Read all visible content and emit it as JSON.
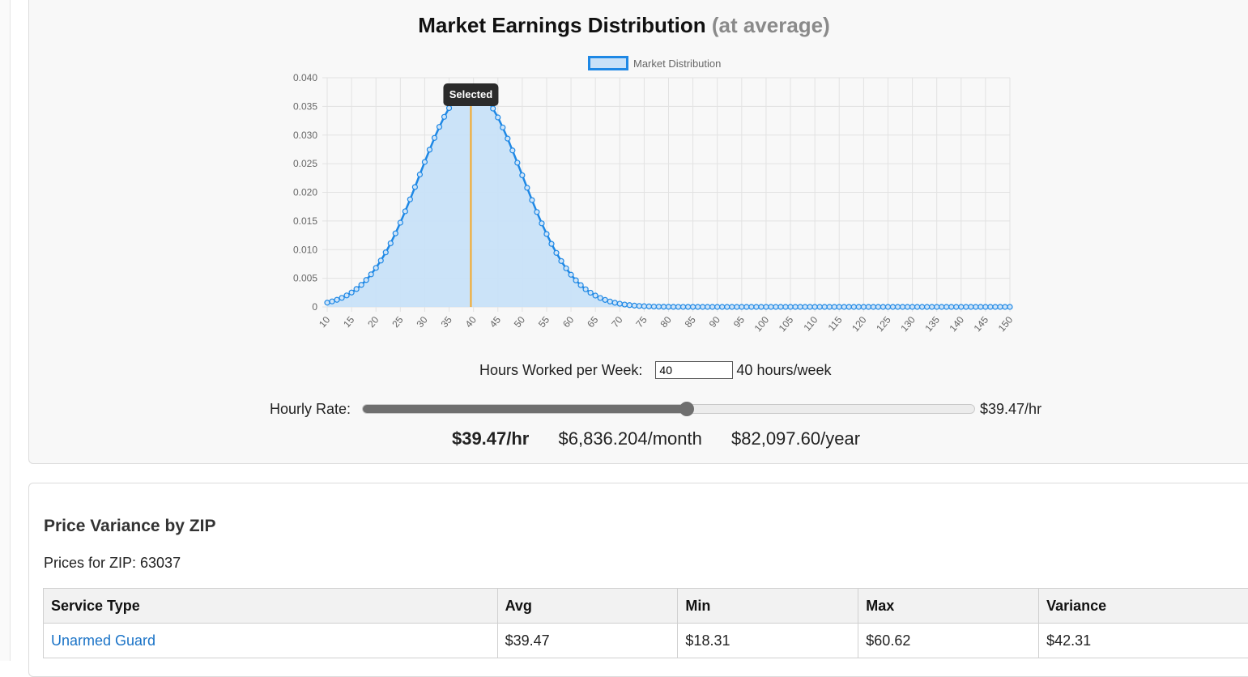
{
  "chart_section": {
    "title": "Market Earnings Distribution",
    "title_suffix": "(at average)",
    "selected_label": "Selected",
    "hours_label": "Hours Worked per Week:",
    "hours_value": "40",
    "hours_display": "40 hours/week",
    "rate_label": "Hourly Rate:",
    "rate_display": "$39.47/hr",
    "rate_fraction": 0.53,
    "summary_hourly": "$39.47/hr",
    "summary_monthly": "$6,836.204/month",
    "summary_yearly": "$82,097.60/year"
  },
  "chart_data": {
    "type": "area",
    "title": "",
    "legend": [
      "Market Distribution"
    ],
    "legend_position": "top-center",
    "grid": true,
    "xlabel": "",
    "ylabel": "",
    "x_ticks": [
      10,
      15,
      20,
      25,
      30,
      35,
      40,
      45,
      50,
      55,
      60,
      65,
      70,
      75,
      80,
      85,
      90,
      95,
      100,
      105,
      110,
      115,
      120,
      125,
      130,
      135,
      140,
      145,
      150
    ],
    "y_ticks": [
      "0",
      "0.005",
      "0.010",
      "0.015",
      "0.020",
      "0.025",
      "0.030",
      "0.035",
      "0.040"
    ],
    "xlim": [
      10,
      150
    ],
    "ylim": [
      0,
      0.04
    ],
    "selected_x": 39.47,
    "series": [
      {
        "name": "Market Distribution",
        "distribution": "normal",
        "mean": 39.47,
        "std_dev": 10.5,
        "x_start": 10,
        "x_end": 150,
        "x_step": 1
      }
    ],
    "colors": {
      "line": "#1e88e5",
      "fill": "#c8e1f8",
      "marker": "#f5a623"
    }
  },
  "table_section": {
    "heading": "Price Variance by ZIP",
    "zip_line": "Prices for ZIP: 63037",
    "columns": [
      "Service Type",
      "Avg",
      "Min",
      "Max",
      "Variance"
    ],
    "rows": [
      [
        "Unarmed Guard",
        "$39.47",
        "$18.31",
        "$60.62",
        "$42.31"
      ]
    ]
  }
}
